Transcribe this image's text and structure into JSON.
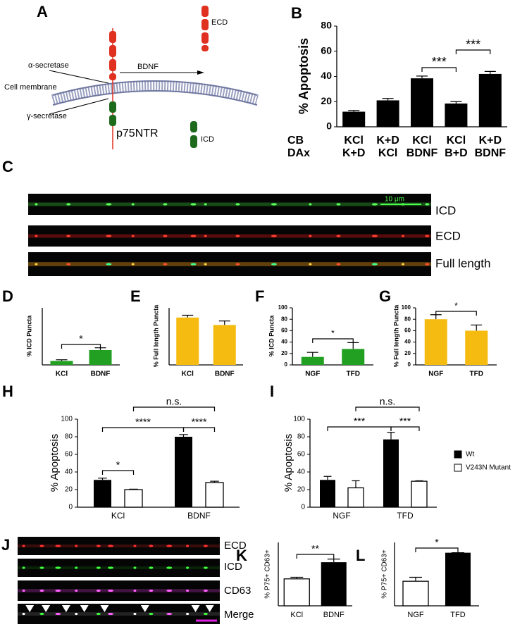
{
  "panel_a": {
    "label": "A",
    "ecd": "ECD",
    "alpha": "α-secretase",
    "ligand": "BDNF",
    "membrane": "Cell membrane",
    "gamma": "γ-secretase",
    "receptor": "p75NTR",
    "icd": "ICD"
  },
  "panel_c": {
    "label": "C",
    "channels": [
      "ICD",
      "ECD",
      "Full length"
    ],
    "scale_bar": "10 μm"
  },
  "panel_j": {
    "label": "J",
    "channels": [
      "ECD",
      "ICD",
      "CD63",
      "Merge"
    ]
  },
  "chart_data": [
    {
      "type": "bar",
      "label": "B",
      "ylabel": "% Apoptosis",
      "category_rows": [
        {
          "name": "CB",
          "labels": [
            "KCl",
            "K+D",
            "KCl",
            "KCl",
            "K+D"
          ]
        },
        {
          "name": "DAx",
          "labels": [
            "K+D",
            "KCl",
            "BDNF",
            "B+D",
            "BDNF"
          ]
        }
      ],
      "values": [
        12,
        21,
        38.5,
        18.5,
        42
      ],
      "errors": [
        1,
        1.5,
        1.8,
        1.5,
        2
      ],
      "color": "#000000",
      "ylim": [
        0,
        80
      ],
      "yticks": [
        0,
        20,
        40,
        60,
        80
      ],
      "annotations": [
        "***",
        "***"
      ]
    },
    {
      "type": "bar",
      "label": "D",
      "ylabel": "% ICD Puncta",
      "categories": [
        "KCl",
        "BDNF"
      ],
      "values": [
        7,
        26
      ],
      "errors": [
        2,
        4
      ],
      "color": "#22a022",
      "ylim": [
        0,
        100
      ],
      "annotations": [
        "*"
      ]
    },
    {
      "type": "bar",
      "label": "E",
      "ylabel": "% Full length Puncta",
      "categories": [
        "KCl",
        "BDNF"
      ],
      "values": [
        83,
        70
      ],
      "errors": [
        4,
        7
      ],
      "color": "#f5bb10",
      "ylim": [
        0,
        100
      ],
      "annotations": []
    },
    {
      "type": "bar",
      "label": "F",
      "ylabel": "% ICD Puncta",
      "categories": [
        "NGF",
        "TFD"
      ],
      "values": [
        14,
        28
      ],
      "errors": [
        8,
        11
      ],
      "color": "#22a022",
      "ylim": [
        0,
        100
      ],
      "yticks": [
        0,
        20,
        40,
        60,
        80,
        100
      ],
      "annotations": [
        "*"
      ]
    },
    {
      "type": "bar",
      "label": "G",
      "ylabel": "% Full length Puncta",
      "categories": [
        "NGF",
        "TFD"
      ],
      "values": [
        80,
        60
      ],
      "errors": [
        8,
        10
      ],
      "color": "#f5bb10",
      "ylim": [
        0,
        100
      ],
      "yticks": [
        0,
        20,
        40,
        60,
        80,
        100
      ],
      "annotations": [
        "*"
      ]
    },
    {
      "type": "bar",
      "label": "H",
      "ylabel": "% Apoptosis",
      "categories": [
        "KCl",
        "BDNF"
      ],
      "series": [
        {
          "color": "#000000",
          "values": [
            31,
            80
          ],
          "errors": [
            2,
            2.5
          ]
        },
        {
          "color": "#ffffff",
          "values": [
            20,
            28
          ],
          "errors": [
            0.5,
            1.5
          ]
        }
      ],
      "ylim": [
        0,
        100
      ],
      "yticks": [
        0,
        20,
        40,
        60,
        80,
        100
      ],
      "annotations": [
        "*",
        "****",
        "****",
        "n.s."
      ]
    },
    {
      "type": "bar",
      "label": "I",
      "ylabel": "% Apoptosis",
      "categories": [
        "NGF",
        "TFD"
      ],
      "series": [
        {
          "name": "Wt",
          "color": "#000000",
          "values": [
            31,
            77
          ],
          "errors": [
            4,
            8
          ]
        },
        {
          "name": "V243N Mutant",
          "color": "#ffffff",
          "values": [
            22,
            29.5
          ],
          "errors": [
            8,
            0.5
          ]
        }
      ],
      "ylim": [
        0,
        100
      ],
      "yticks": [
        0,
        20,
        40,
        60,
        80,
        100
      ],
      "annotations": [
        "***",
        "***",
        "n.s."
      ]
    },
    {
      "type": "bar",
      "label": "K",
      "ylabel": "% P75+ CD63+",
      "categories": [
        "KCl",
        "BDNF"
      ],
      "values": [
        34,
        55
      ],
      "errors": [
        2,
        4
      ],
      "colors": [
        "#ffffff",
        "#000000"
      ],
      "ylim": [
        0,
        80
      ],
      "annotations": [
        "**"
      ]
    },
    {
      "type": "bar",
      "label": "L",
      "ylabel": "% P75+ CD63+",
      "categories": [
        "NGF",
        "TFD"
      ],
      "values": [
        31,
        67
      ],
      "errors": [
        5,
        0
      ],
      "colors": [
        "#ffffff",
        "#000000"
      ],
      "ylim": [
        0,
        80
      ],
      "annotations": [
        "*"
      ]
    }
  ]
}
